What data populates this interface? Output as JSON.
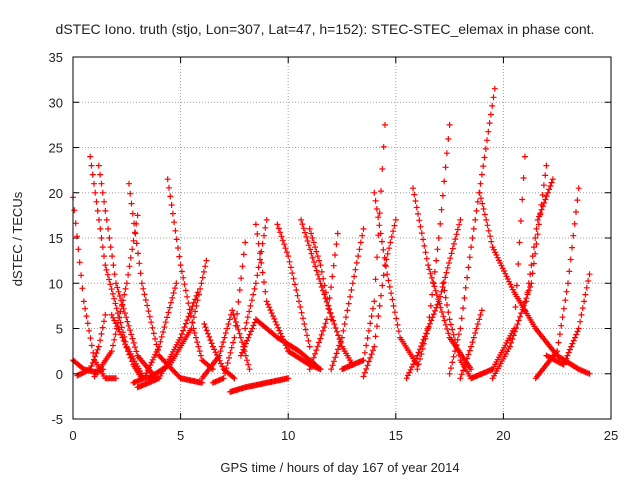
{
  "chart_data": {
    "type": "scatter",
    "title": "dSTEC Iono. truth (stjo, Lon=307, Lat=47, h=152): STEC-STEC_elemax in phase cont.",
    "xlabel": "GPS time / hours of day 167 of year 2014",
    "ylabel": "dSTEC  / TECUs",
    "xlim": [
      0,
      25
    ],
    "ylim": [
      -5,
      35
    ],
    "xticks": [
      "0",
      "5",
      "10",
      "15",
      "20",
      "25"
    ],
    "yticks": [
      "-5",
      "0",
      "5",
      "10",
      "15",
      "20",
      "25",
      "30",
      "35"
    ],
    "grid": true,
    "marker": "plus",
    "color": "#ff0000",
    "series": [
      {
        "x": [
          0.0,
          0.5,
          1.0,
          1.5,
          2.0
        ],
        "y": [
          19.5,
          8.0,
          1.5,
          -0.5,
          -0.5
        ]
      },
      {
        "x": [
          0.0,
          0.5,
          1.0,
          1.4
        ],
        "y": [
          1.5,
          0.5,
          0.2,
          0.5
        ]
      },
      {
        "x": [
          0.2,
          0.8,
          1.2,
          1.5
        ],
        "y": [
          -0.2,
          0.5,
          3.0,
          6.5
        ]
      },
      {
        "x": [
          0.8,
          1.5,
          2.5,
          3.3,
          3.8
        ],
        "y": [
          24.0,
          12.0,
          3.0,
          -0.5,
          -0.3
        ]
      },
      {
        "x": [
          1.2,
          2.0,
          3.0,
          3.8
        ],
        "y": [
          23.0,
          10.0,
          2.0,
          -0.3
        ]
      },
      {
        "x": [
          1.8,
          2.3,
          2.8,
          3.2
        ],
        "y": [
          6.5,
          4.0,
          1.0,
          -0.5
        ]
      },
      {
        "x": [
          1.0,
          1.8,
          2.5,
          3.0
        ],
        "y": [
          -0.3,
          2.5,
          10.0,
          17.5
        ]
      },
      {
        "x": [
          2.6,
          3.2,
          4.0,
          5.0,
          6.0
        ],
        "y": [
          21.0,
          10.0,
          2.0,
          -0.5,
          -1.0
        ]
      },
      {
        "x": [
          2.8,
          3.3,
          4.0,
          4.8
        ],
        "y": [
          -1.0,
          -0.5,
          3.0,
          10.0
        ]
      },
      {
        "x": [
          4.4,
          5.0,
          5.6,
          6.0,
          6.5
        ],
        "y": [
          21.5,
          12.0,
          5.0,
          1.5,
          0.5
        ]
      },
      {
        "x": [
          3.0,
          4.0,
          5.0,
          5.8
        ],
        "y": [
          -1.5,
          -0.5,
          4.0,
          9.0
        ]
      },
      {
        "x": [
          3.5,
          4.5,
          5.5,
          6.2
        ],
        "y": [
          -0.5,
          1.0,
          5.0,
          12.5
        ]
      },
      {
        "x": [
          6.1,
          6.5,
          7.0,
          7.5
        ],
        "y": [
          5.5,
          3.0,
          0.5,
          -0.5
        ]
      },
      {
        "x": [
          6.5,
          7.0,
          7.5,
          8.0
        ],
        "y": [
          -1.0,
          -0.5,
          4.0,
          14.5
        ]
      },
      {
        "x": [
          6.0,
          6.8,
          7.4,
          7.8,
          8.2
        ],
        "y": [
          -0.5,
          2.0,
          7.0,
          4.0,
          0.5
        ]
      },
      {
        "x": [
          7.3,
          8.0,
          9.0,
          10.0
        ],
        "y": [
          -2.0,
          -1.5,
          -1.0,
          -0.5
        ]
      },
      {
        "x": [
          8.0,
          8.5,
          9.0
        ],
        "y": [
          5.0,
          10.0,
          17.0
        ]
      },
      {
        "x": [
          8.5,
          9.0,
          10.0,
          11.0,
          11.5
        ],
        "y": [
          16.5,
          8.0,
          2.5,
          1.0,
          0.5
        ]
      },
      {
        "x": [
          7.8,
          8.5,
          9.5,
          10.5,
          11.5
        ],
        "y": [
          2.0,
          6.0,
          4.0,
          2.5,
          0.5
        ]
      },
      {
        "x": [
          9.5,
          10.0,
          10.5,
          11.0
        ],
        "y": [
          16.5,
          13.0,
          8.0,
          3.0
        ]
      },
      {
        "x": [
          10.6,
          11.5,
          12.5,
          13.0
        ],
        "y": [
          17.0,
          10.0,
          3.0,
          1.0
        ]
      },
      {
        "x": [
          11.0,
          11.5,
          12.0
        ],
        "y": [
          16.0,
          12.0,
          6.0
        ]
      },
      {
        "x": [
          11.0,
          11.8,
          12.3
        ],
        "y": [
          0.5,
          6.0,
          15.5
        ]
      },
      {
        "x": [
          12.0,
          12.5,
          13.0,
          13.5
        ],
        "y": [
          0.5,
          4.0,
          10.0,
          16.0
        ]
      },
      {
        "x": [
          12.5,
          13.5,
          14.0,
          14.5
        ],
        "y": [
          0.5,
          1.5,
          8.0,
          27.5
        ]
      },
      {
        "x": [
          13.5,
          14.0,
          14.5,
          15.0
        ],
        "y": [
          -0.3,
          3.0,
          12.0,
          17.0
        ]
      },
      {
        "x": [
          14.0,
          14.6,
          15.2,
          16.0
        ],
        "y": [
          20.0,
          11.0,
          4.0,
          1.0
        ]
      },
      {
        "x": [
          15.5,
          16.0,
          17.0,
          18.0
        ],
        "y": [
          -0.5,
          2.0,
          8.0,
          17.0
        ]
      },
      {
        "x": [
          15.8,
          16.5,
          17.5,
          18.5
        ],
        "y": [
          20.5,
          12.0,
          4.0,
          0.5
        ]
      },
      {
        "x": [
          16.0,
          16.5,
          17.0,
          17.5
        ],
        "y": [
          0.5,
          5.0,
          15.0,
          27.5
        ]
      },
      {
        "x": [
          17.2,
          17.5,
          18.0,
          18.5
        ],
        "y": [
          10.0,
          6.0,
          1.5,
          -0.5
        ]
      },
      {
        "x": [
          17.5,
          18.0,
          18.5,
          19.0,
          19.6
        ],
        "y": [
          0.0,
          5.0,
          14.0,
          22.0,
          31.5
        ]
      },
      {
        "x": [
          18.0,
          18.5,
          19.0
        ],
        "y": [
          -0.5,
          3.0,
          7.0
        ]
      },
      {
        "x": [
          18.9,
          19.5,
          20.5,
          21.5,
          22.5,
          23.5,
          24.0
        ],
        "y": [
          20.0,
          14.0,
          9.0,
          5.0,
          2.0,
          0.5,
          0.0
        ]
      },
      {
        "x": [
          18.5,
          19.5,
          20.5,
          21.0
        ],
        "y": [
          -0.5,
          0.5,
          5.0,
          24.0
        ]
      },
      {
        "x": [
          19.5,
          20.3,
          21.3,
          22.0
        ],
        "y": [
          -0.5,
          3.0,
          10.0,
          23.0
        ]
      },
      {
        "x": [
          21.0,
          21.6,
          22.3
        ],
        "y": [
          7.0,
          17.0,
          21.5
        ]
      },
      {
        "x": [
          21.5,
          22.5,
          23.0,
          23.5
        ],
        "y": [
          -0.5,
          2.5,
          10.0,
          20.5
        ]
      },
      {
        "x": [
          22.0,
          22.8,
          23.5,
          24.0
        ],
        "y": [
          2.0,
          1.0,
          5.0,
          11.0
        ]
      }
    ]
  }
}
